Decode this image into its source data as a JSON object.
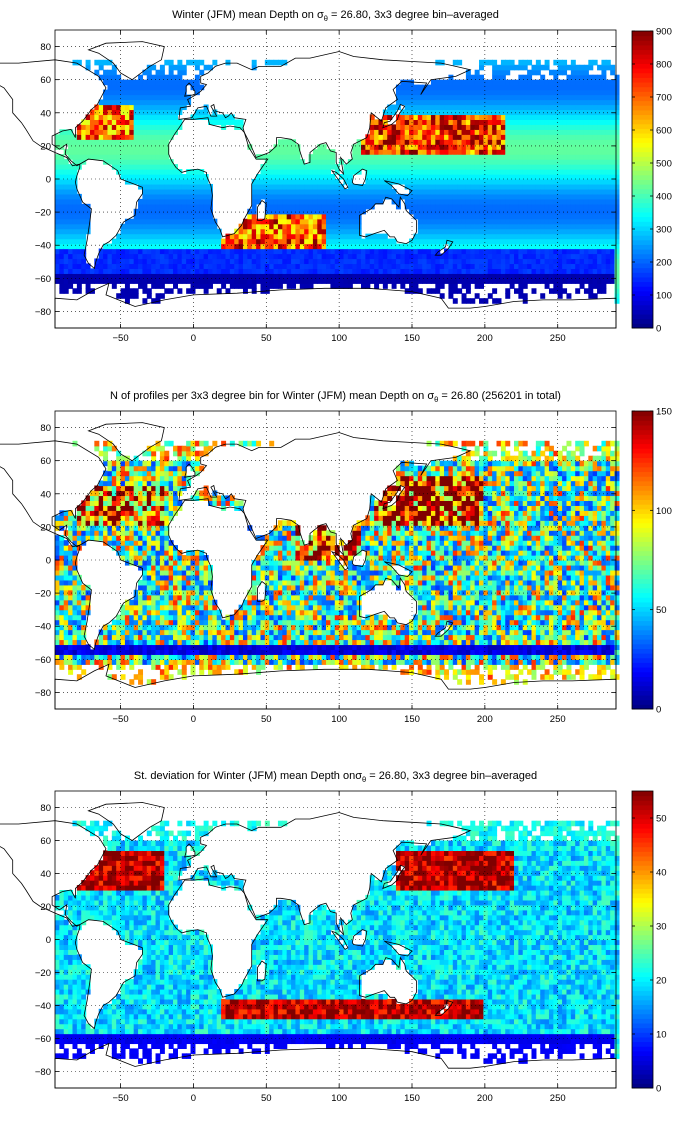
{
  "chart_data": [
    {
      "type": "heatmap",
      "title_prefix": "Winter (JFM) mean Depth on ",
      "title_symbol": "σ",
      "title_subscript": "θ",
      "title_suffix": " = 26.80, 3x3 degree bin–averaged",
      "xlim": [
        -95,
        290
      ],
      "ylim": [
        -90,
        90
      ],
      "xticks": [
        -50,
        0,
        50,
        100,
        150,
        200,
        250
      ],
      "yticks": [
        -80,
        -60,
        -40,
        -20,
        0,
        20,
        40,
        60,
        80
      ],
      "grid": true,
      "colorbar": {
        "min": 0,
        "max": 900,
        "ticks": [
          0,
          100,
          200,
          300,
          400,
          500,
          600,
          700,
          800,
          900
        ]
      },
      "features": [
        {
          "lon": [
            115,
            215
          ],
          "lat": [
            15,
            40
          ],
          "value": 750,
          "spread": 0.5
        },
        {
          "lon": [
            -80,
            -40
          ],
          "lat": [
            25,
            45
          ],
          "value": 700,
          "spread": 0.5
        },
        {
          "lon": [
            20,
            90
          ],
          "lat": [
            -42,
            -22
          ],
          "value": 720,
          "spread": 0.5
        },
        {
          "lon": [
            -95,
            290
          ],
          "lat": [
            -58,
            -42
          ],
          "value": 150,
          "spread": 0.3
        },
        {
          "lon": [
            -95,
            290
          ],
          "lat": [
            -75,
            -58
          ],
          "value": 40,
          "spread": 0.3
        }
      ]
    },
    {
      "type": "heatmap",
      "title_prefix": "N of profiles per 3x3 degree bin for Winter (JFM) mean Depth on ",
      "title_symbol": "σ",
      "title_subscript": "θ",
      "title_suffix": " = 26.80 (256201 in total)",
      "xlim": [
        -95,
        290
      ],
      "ylim": [
        -90,
        90
      ],
      "xticks": [
        -50,
        0,
        50,
        100,
        150,
        200,
        250
      ],
      "yticks": [
        -80,
        -60,
        -40,
        -20,
        0,
        20,
        40,
        60,
        80
      ],
      "grid": true,
      "colorbar": {
        "min": 0,
        "max": 150,
        "ticks": [
          0,
          50,
          100,
          150
        ]
      },
      "features": [
        {
          "lon": [
            125,
            200
          ],
          "lat": [
            20,
            50
          ],
          "value": 145,
          "spread": 0.4
        },
        {
          "lon": [
            -80,
            -20
          ],
          "lat": [
            20,
            45
          ],
          "value": 130,
          "spread": 0.4
        },
        {
          "lon": [
            70,
            115
          ],
          "lat": [
            0,
            25
          ],
          "value": 140,
          "spread": 0.4
        },
        {
          "lon": [
            -95,
            290
          ],
          "lat": [
            -58,
            -50
          ],
          "value": 15,
          "spread": 0.3
        }
      ]
    },
    {
      "type": "heatmap",
      "title_prefix": "St. deviation for Winter (JFM) mean Depth on",
      "title_symbol": "σ",
      "title_subscript": "θ",
      "title_suffix": " = 26.80, 3x3 degree bin–averaged",
      "xlim": [
        -95,
        290
      ],
      "ylim": [
        -90,
        90
      ],
      "xticks": [
        -50,
        0,
        50,
        100,
        150,
        200,
        250
      ],
      "yticks": [
        -80,
        -60,
        -40,
        -20,
        0,
        20,
        40,
        60,
        80
      ],
      "grid": true,
      "colorbar": {
        "min": 0,
        "max": 55,
        "ticks": [
          0,
          10,
          20,
          30,
          40,
          50
        ]
      },
      "features": [
        {
          "lon": [
            -80,
            -20
          ],
          "lat": [
            30,
            55
          ],
          "value": 52,
          "spread": 0.3
        },
        {
          "lon": [
            140,
            220
          ],
          "lat": [
            30,
            55
          ],
          "value": 52,
          "spread": 0.3
        },
        {
          "lon": [
            20,
            200
          ],
          "lat": [
            -48,
            -35
          ],
          "value": 52,
          "spread": 0.3
        },
        {
          "lon": [
            -95,
            290
          ],
          "lat": [
            -75,
            -58
          ],
          "value": 6,
          "spread": 0.3
        }
      ]
    }
  ]
}
